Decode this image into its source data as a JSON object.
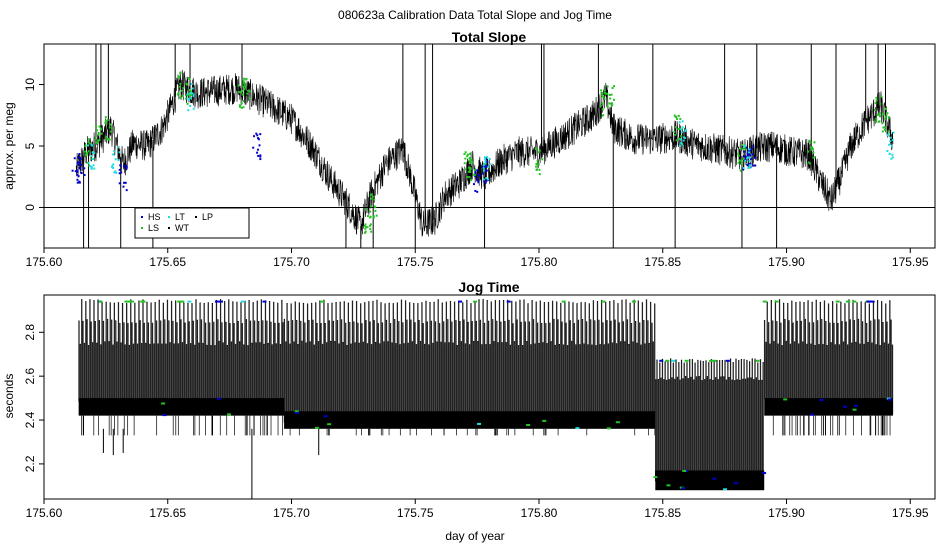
{
  "figure": {
    "title": "080623a   Calibration Data Total Slope and Jog Time",
    "xlabel": "day of year"
  },
  "colors": {
    "trace": "#000000",
    "HS": "#0000cc",
    "LS": "#22c322",
    "LT": "#22dddd",
    "WT": "#000000",
    "LP": "#000000"
  },
  "chart_data": [
    {
      "type": "line",
      "title": "Total Slope",
      "ylabel": "approx. per meg",
      "xlim": [
        175.6,
        175.96
      ],
      "ylim": [
        -3.3,
        13.3
      ],
      "xticks": [
        "175.60",
        "175.65",
        "175.70",
        "175.75",
        "175.80",
        "175.85",
        "175.90",
        "175.95"
      ],
      "xtick_values": [
        175.6,
        175.65,
        175.7,
        175.75,
        175.8,
        175.85,
        175.9,
        175.95
      ],
      "yticks": [
        "0",
        "5",
        "10"
      ],
      "ytick_values": [
        0,
        5,
        10
      ],
      "reference_line": 0,
      "legend": {
        "placement": "bottom-left",
        "entries": [
          {
            "name": "HS",
            "color_key": "HS"
          },
          {
            "name": "LS",
            "color_key": "LS"
          },
          {
            "name": "LT",
            "color_key": "LT"
          },
          {
            "name": "WT",
            "color_key": "WT"
          },
          {
            "name": "LP",
            "color_key": "LP"
          }
        ]
      },
      "trend": {
        "x": [
          175.613,
          175.617,
          175.622,
          175.627,
          175.632,
          175.636,
          175.642,
          175.648,
          175.655,
          175.662,
          175.67,
          175.678,
          175.685,
          175.692,
          175.7,
          175.708,
          175.716,
          175.722,
          175.728,
          175.732,
          175.738,
          175.745,
          175.75,
          175.753,
          175.758,
          175.762,
          175.768,
          175.773,
          175.778,
          175.785,
          175.792,
          175.8,
          175.808,
          175.815,
          175.822,
          175.827,
          175.83,
          175.838,
          175.846,
          175.855,
          175.862,
          175.87,
          175.877,
          175.882,
          175.888,
          175.895,
          175.902,
          175.909,
          175.914,
          175.918,
          175.922,
          175.926,
          175.932,
          175.938,
          175.943
        ],
        "y": [
          3,
          4.5,
          5.2,
          6.5,
          3.5,
          5.2,
          5.0,
          6.5,
          10.0,
          9.3,
          9.5,
          9.7,
          9.0,
          8.2,
          7.2,
          5.0,
          2.2,
          0.5,
          -1.5,
          1.0,
          3.5,
          4.8,
          1.0,
          -1.5,
          -1.0,
          1.0,
          2.0,
          3.5,
          2.5,
          3.8,
          4.5,
          4.5,
          5.5,
          6.5,
          7.5,
          9.0,
          6.5,
          5.6,
          5.5,
          5.8,
          5.2,
          4.8,
          4.5,
          4.2,
          4.8,
          5.0,
          4.5,
          4.3,
          2.0,
          0.5,
          2.5,
          5.0,
          7.0,
          8.3,
          5.5
        ],
        "noise": 1.3
      },
      "markers": [
        {
          "label": "HS",
          "x": [
            175.613,
            175.615,
            175.632,
            175.686,
            175.775,
            175.778,
            175.884,
            175.886
          ],
          "y": [
            3.0,
            3.5,
            2.5,
            5.0,
            2.0,
            3.0,
            4.0,
            4.5
          ]
        },
        {
          "label": "LS",
          "x": [
            175.618,
            175.622,
            175.626,
            175.655,
            175.658,
            175.68,
            175.682,
            175.731,
            175.733,
            175.771,
            175.773,
            175.8,
            175.826,
            175.829,
            175.856,
            175.882,
            175.91,
            175.937,
            175.94
          ],
          "y": [
            4.5,
            5.5,
            6.5,
            10.0,
            9.5,
            9.0,
            9.5,
            -1.0,
            0.0,
            3.5,
            3.0,
            3.8,
            8.5,
            9.0,
            6.5,
            4.0,
            4.5,
            8.0,
            7.0
          ]
        },
        {
          "label": "LT",
          "x": [
            175.619,
            175.629,
            175.659,
            175.779,
            175.858,
            175.884,
            175.942
          ],
          "y": [
            4.0,
            3.8,
            9.0,
            3.0,
            6.0,
            4.2,
            5.0
          ]
        }
      ],
      "spikes_x": [
        175.616,
        175.618,
        175.621,
        175.623,
        175.626,
        175.631,
        175.644,
        175.653,
        175.659,
        175.68,
        175.722,
        175.728,
        175.733,
        175.745,
        175.75,
        175.754,
        175.757,
        175.778,
        175.801,
        175.802,
        175.824,
        175.83,
        175.846,
        175.855,
        175.875,
        175.882,
        175.888,
        175.896,
        175.91,
        175.92,
        175.932,
        175.937,
        175.94
      ]
    },
    {
      "type": "line",
      "title": "Jog Time",
      "ylabel": "seconds",
      "xlim": [
        175.6,
        175.96
      ],
      "ylim": [
        2.04,
        2.97
      ],
      "xticks": [
        "175.60",
        "175.65",
        "175.70",
        "175.75",
        "175.80",
        "175.85",
        "175.90",
        "175.95"
      ],
      "xtick_values": [
        175.6,
        175.65,
        175.7,
        175.75,
        175.8,
        175.85,
        175.9,
        175.95
      ],
      "yticks": [
        "2.2",
        "2.4",
        "2.6",
        "2.8"
      ],
      "ytick_values": [
        2.2,
        2.4,
        2.6,
        2.8
      ],
      "segments": [
        {
          "x_start": 175.614,
          "x_end": 175.697,
          "high": [
            2.94,
            2.85,
            2.75
          ],
          "band": [
            2.42,
            2.5
          ],
          "floor": 2.33
        },
        {
          "x_start": 175.697,
          "x_end": 175.847,
          "high": [
            2.94,
            2.85,
            2.75
          ],
          "band": [
            2.36,
            2.44
          ],
          "floor": 2.33
        },
        {
          "x_start": 175.847,
          "x_end": 175.891,
          "high": [
            2.67,
            2.59
          ],
          "band": [
            2.08,
            2.17
          ],
          "floor": 2.08
        },
        {
          "x_start": 175.891,
          "x_end": 175.943,
          "high": [
            2.94,
            2.85,
            2.75
          ],
          "band": [
            2.42,
            2.5
          ],
          "floor": 2.33
        }
      ],
      "dips": [
        {
          "x": 175.624,
          "y": 2.25
        },
        {
          "x": 175.628,
          "y": 2.24
        },
        {
          "x": 175.632,
          "y": 2.25
        },
        {
          "x": 175.684,
          "y": 2.04
        },
        {
          "x": 175.711,
          "y": 2.24
        }
      ]
    }
  ]
}
